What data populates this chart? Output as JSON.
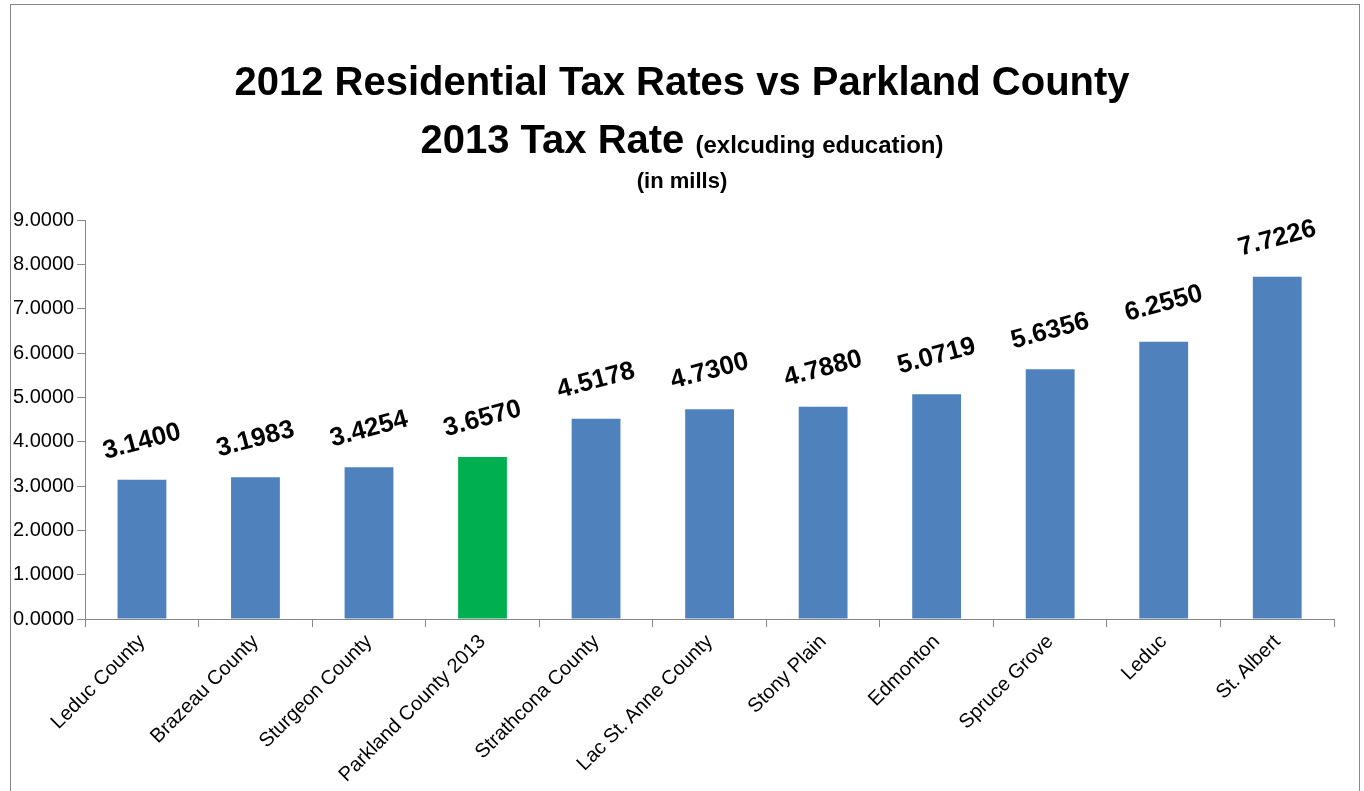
{
  "chart_data": {
    "type": "bar",
    "title": "2012 Residential Tax Rates vs Parkland County 2013 Tax Rate",
    "subtitle": "(exlcuding education)",
    "annotations": [
      "(in mills)"
    ],
    "categories": [
      "Leduc County",
      "Brazeau County",
      "Sturgeon County",
      "Parkland County 2013",
      "Strathcona County",
      "Lac St. Anne County",
      "Stony Plain",
      "Edmonton",
      "Spruce Grove",
      "Leduc",
      "St. Albert"
    ],
    "values": [
      3.14,
      3.1983,
      3.4254,
      3.657,
      4.5178,
      4.73,
      4.788,
      5.0719,
      5.6356,
      6.255,
      7.7226
    ],
    "colors": [
      "#4f81bd",
      "#4f81bd",
      "#4f81bd",
      "#00b050",
      "#4f81bd",
      "#4f81bd",
      "#4f81bd",
      "#4f81bd",
      "#4f81bd",
      "#4f81bd",
      "#4f81bd"
    ],
    "value_labels": [
      "3.1400",
      "3.1983",
      "3.4254",
      "3.6570",
      "4.5178",
      "4.7300",
      "4.7880",
      "5.0719",
      "5.6356",
      "6.2550",
      "7.7226"
    ],
    "ylim": [
      0,
      9
    ],
    "yticks": [
      {
        "value": 0,
        "label": "0.0000"
      },
      {
        "value": 1,
        "label": "1.0000"
      },
      {
        "value": 2,
        "label": "2.0000"
      },
      {
        "value": 3,
        "label": "3.0000"
      },
      {
        "value": 4,
        "label": "4.0000"
      },
      {
        "value": 5,
        "label": "5.0000"
      },
      {
        "value": 6,
        "label": "6.0000"
      },
      {
        "value": 7,
        "label": "7.0000"
      },
      {
        "value": 8,
        "label": "8.0000"
      },
      {
        "value": 9,
        "label": "9.0000"
      }
    ],
    "grid": false,
    "legend": false
  }
}
